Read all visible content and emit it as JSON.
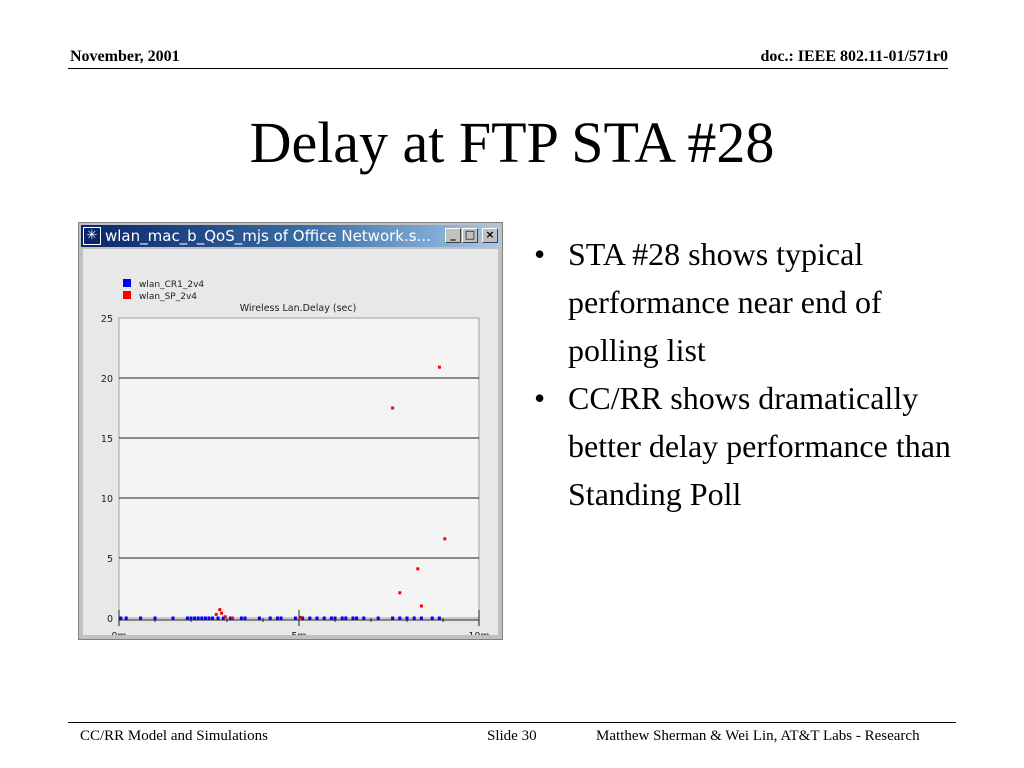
{
  "header": {
    "date": "November, 2001",
    "doc": "doc.: IEEE 802.11-01/571r0"
  },
  "title": "Delay at FTP STA #28",
  "window": {
    "title": "wlan_mac_b_QoS_mjs of Office Network.s...",
    "minimize": "_",
    "maximize": "□",
    "close": "×"
  },
  "bullets": [
    "STA #28 shows typical performance near end of polling list",
    "CC/RR shows dramatically better delay performance than Standing Poll"
  ],
  "footer": {
    "left": "CC/RR Model and Simulations",
    "slide": "Slide 30",
    "right": "Matthew Sherman & Wei Lin, AT&T Labs - Research"
  },
  "chart_data": {
    "type": "scatter",
    "title": "Wireless Lan.Delay (sec)",
    "ylim": [
      0,
      25
    ],
    "yticks": [
      "0",
      "5",
      "10",
      "15",
      "20",
      "25"
    ],
    "xlim": [
      0,
      10
    ],
    "xticks": [
      {
        "x": 0,
        "label": "0m"
      },
      {
        "x": 5,
        "label": "5m"
      },
      {
        "x": 10,
        "label": "10m"
      }
    ],
    "grid": "horizontal",
    "legend_position": "top-left",
    "series": [
      {
        "name": "wlan_CR1_2v4",
        "color": "#0000ff",
        "x": [
          0.05,
          0.2,
          0.6,
          1.0,
          1.5,
          1.9,
          2.0,
          2.1,
          2.2,
          2.3,
          2.4,
          2.5,
          2.6,
          2.75,
          2.9,
          3.1,
          3.4,
          3.5,
          3.9,
          4.2,
          4.4,
          4.5,
          4.9,
          5.1,
          5.3,
          5.5,
          5.7,
          5.9,
          6.0,
          6.2,
          6.3,
          6.5,
          6.6,
          6.8,
          7.2,
          7.6,
          7.8,
          8.0,
          8.2,
          8.4,
          8.7,
          8.9
        ],
        "y": [
          0,
          0,
          0,
          0,
          0,
          0,
          0,
          0,
          0,
          0,
          0,
          0,
          0,
          0,
          0,
          0,
          0,
          0,
          0,
          0,
          0,
          0,
          0,
          0,
          0,
          0,
          0,
          0,
          0,
          0,
          0,
          0,
          0,
          0,
          0,
          0,
          0,
          0,
          0,
          0,
          0,
          0
        ]
      },
      {
        "name": "wlan_SP_2v4",
        "color": "#ff0000",
        "x": [
          2.7,
          2.8,
          2.85,
          2.95,
          3.15,
          5.05,
          7.6,
          7.8,
          8.3,
          8.4,
          8.9,
          9.05
        ],
        "y": [
          0.3,
          0.7,
          0.4,
          0.1,
          0.0,
          0.05,
          17.5,
          2.1,
          4.1,
          1.0,
          20.9,
          6.6
        ]
      }
    ]
  }
}
